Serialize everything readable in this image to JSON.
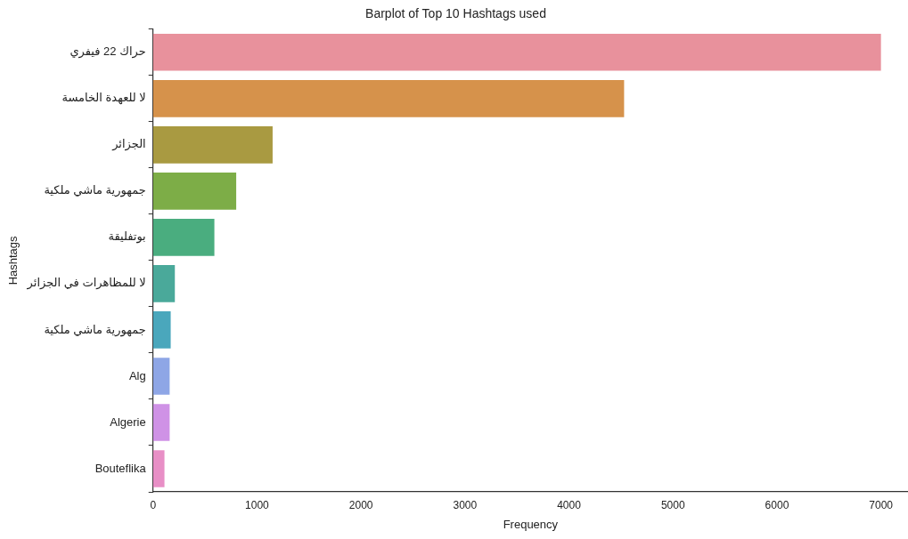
{
  "chart_data": {
    "type": "bar",
    "orientation": "horizontal",
    "title": "Barplot of Top 10 Hashtags used",
    "xlabel": "Frequency",
    "ylabel": "Hashtags",
    "categories": [
      "حراك 22 فيفري",
      "لا للعهدة الخامسة",
      "الجزائر",
      "جمهورية ماشي ملكية",
      "بوتفليقة",
      "لا للمظاهرات في الجزائر",
      "جمهورية ماشي ملكية",
      "Alg",
      "Algerie",
      "Bouteflika"
    ],
    "values": [
      7000,
      4530,
      1150,
      800,
      590,
      210,
      170,
      160,
      160,
      110
    ],
    "colors": [
      "#e8919c",
      "#d6924b",
      "#a99a41",
      "#7dad47",
      "#4aad7f",
      "#4aa99a",
      "#4aa7bc",
      "#8ea6e6",
      "#cf92e6",
      "#e88fc6"
    ],
    "xlim": [
      0,
      7260
    ],
    "xticks": [
      0,
      1000,
      2000,
      3000,
      4000,
      5000,
      6000,
      7000
    ],
    "grid": false,
    "legend": false
  }
}
